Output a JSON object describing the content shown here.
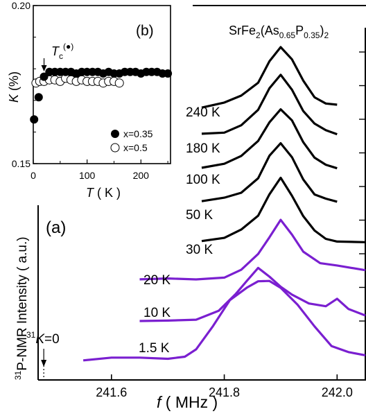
{
  "chart_data": [
    {
      "panel": "(a)",
      "type": "line",
      "title": "SrFe2(As0.65P0.35)2",
      "title_parts": {
        "base": "SrFe",
        "s1": "2",
        "mid": "(As",
        "s2": "0.65",
        "mid2": "P",
        "s3": "0.35",
        "end": ")",
        "s4": "2"
      },
      "xlabel": "f ( MHz )",
      "xlabel_parts": {
        "f": "f",
        "unit": " ( MHz )"
      },
      "ylabel": "31P-NMR Intensity  ( a.u.)",
      "ylabel_parts": {
        "sup": "31",
        "text": "P-NMR Intensity  ( a.u.)"
      },
      "xlim": [
        241.47,
        242.05
      ],
      "xticks": [
        "241.6",
        "241.8",
        "242.0"
      ],
      "annotation": {
        "sup": "31",
        "k": "K",
        "text": "=0",
        "x": 241.48
      },
      "series_colors": {
        "normal": "#000000",
        "below_tc": "#7a1fd0"
      },
      "series": [
        {
          "name": "240 K",
          "color": "#000000",
          "x": [
            241.76,
            241.8,
            241.83,
            241.86,
            241.88,
            241.9,
            241.92,
            241.94,
            241.96,
            241.98,
            242.0
          ],
          "y": [
            0.24,
            0.28,
            0.37,
            0.56,
            0.83,
            1.0,
            0.83,
            0.55,
            0.36,
            0.28,
            0.24
          ]
        },
        {
          "name": "180 K",
          "color": "#000000",
          "x": [
            241.76,
            241.8,
            241.83,
            241.86,
            241.88,
            241.9,
            241.92,
            241.94,
            241.96,
            241.98,
            242.0
          ],
          "y": [
            0.24,
            0.28,
            0.37,
            0.56,
            0.83,
            1.0,
            0.83,
            0.55,
            0.36,
            0.28,
            0.24
          ]
        },
        {
          "name": "100 K",
          "color": "#000000",
          "x": [
            241.76,
            241.8,
            241.83,
            241.86,
            241.88,
            241.9,
            241.92,
            241.94,
            241.96,
            241.98,
            242.0
          ],
          "y": [
            0.24,
            0.28,
            0.37,
            0.56,
            0.83,
            1.0,
            0.83,
            0.55,
            0.36,
            0.28,
            0.24
          ]
        },
        {
          "name": "50 K",
          "color": "#000000",
          "x": [
            241.76,
            241.8,
            241.83,
            241.86,
            241.88,
            241.9,
            241.92,
            241.94,
            241.96,
            241.98,
            242.0
          ],
          "y": [
            0.24,
            0.28,
            0.37,
            0.56,
            0.83,
            1.0,
            0.83,
            0.55,
            0.36,
            0.28,
            0.24
          ]
        },
        {
          "name": "30 K",
          "color": "#000000",
          "x": [
            241.76,
            241.8,
            241.83,
            241.86,
            241.88,
            241.9,
            241.92,
            241.94,
            241.96,
            241.98,
            242.0,
            242.05
          ],
          "y": [
            0.2,
            0.24,
            0.32,
            0.5,
            0.78,
            1.0,
            0.78,
            0.5,
            0.32,
            0.24,
            0.2,
            0.18
          ]
        },
        {
          "name": "20 K",
          "color": "#7a1fd0",
          "x": [
            241.65,
            241.7,
            241.75,
            241.8,
            241.83,
            241.86,
            241.88,
            241.9,
            241.92,
            241.94,
            241.97,
            242.0,
            242.05
          ],
          "y": [
            0.1,
            0.12,
            0.12,
            0.16,
            0.28,
            0.48,
            0.72,
            1.0,
            0.78,
            0.52,
            0.34,
            0.3,
            0.26
          ]
        },
        {
          "name": "10 K",
          "color": "#7a1fd0",
          "x": [
            241.65,
            241.7,
            241.75,
            241.79,
            241.82,
            241.84,
            241.86,
            241.88,
            241.9,
            241.92,
            241.95,
            241.98,
            242.0,
            242.02,
            242.05
          ],
          "y": [
            0.04,
            0.06,
            0.08,
            0.18,
            0.42,
            0.64,
            0.82,
            0.68,
            0.52,
            0.4,
            0.3,
            0.26,
            0.34,
            0.2,
            0.12
          ]
        },
        {
          "name": "1.5 K",
          "color": "#7a1fd0",
          "x": [
            241.55,
            241.6,
            241.65,
            241.7,
            241.73,
            241.75,
            241.78,
            241.81,
            241.84,
            241.86,
            241.88,
            241.9,
            241.93,
            241.96,
            241.99,
            242.02,
            242.05
          ],
          "y": [
            0.02,
            0.03,
            0.03,
            0.04,
            0.06,
            0.14,
            0.42,
            0.74,
            0.92,
            1.0,
            0.98,
            0.9,
            0.7,
            0.44,
            0.2,
            0.1,
            0.06
          ]
        }
      ]
    },
    {
      "panel": "(b)",
      "type": "scatter",
      "xlabel": "T ( K )",
      "xlabel_parts": {
        "t": "T",
        "unit": " ( K )"
      },
      "ylabel": "K (%)",
      "ylabel_parts": {
        "k": "K",
        "unit": " (%)"
      },
      "xlim": [
        0,
        255
      ],
      "ylim": [
        0.15,
        0.2
      ],
      "xticks": [
        0,
        100,
        200
      ],
      "yticks": [
        "0.15",
        "0.20"
      ],
      "annotation": {
        "t": "T",
        "sub": "c",
        "sup": "(●)",
        "x": 20
      },
      "legend_position": "bottom-right",
      "series": [
        {
          "name": "x=0.35",
          "marker": "filled",
          "x": [
            1.5,
            10,
            20,
            30,
            40,
            50,
            60,
            70,
            80,
            90,
            100,
            110,
            120,
            130,
            140,
            150,
            160,
            170,
            180,
            190,
            200,
            210,
            220,
            230,
            240,
            250
          ],
          "y": [
            0.164,
            0.171,
            0.1775,
            0.179,
            0.179,
            0.179,
            0.179,
            0.179,
            0.1785,
            0.179,
            0.179,
            0.179,
            0.179,
            0.1785,
            0.179,
            0.1785,
            0.1785,
            0.179,
            0.179,
            0.179,
            0.1785,
            0.179,
            0.179,
            0.179,
            0.1785,
            0.1785
          ]
        },
        {
          "name": "x=0.5",
          "marker": "open",
          "x": [
            5,
            12,
            20,
            30,
            40,
            50,
            60,
            70,
            80,
            90,
            100,
            110,
            120,
            130,
            140,
            150,
            160
          ],
          "y": [
            0.1755,
            0.176,
            0.176,
            0.1765,
            0.1765,
            0.176,
            0.177,
            0.1765,
            0.176,
            0.1765,
            0.176,
            0.176,
            0.176,
            0.1755,
            0.176,
            0.176,
            0.1755
          ]
        }
      ]
    }
  ]
}
